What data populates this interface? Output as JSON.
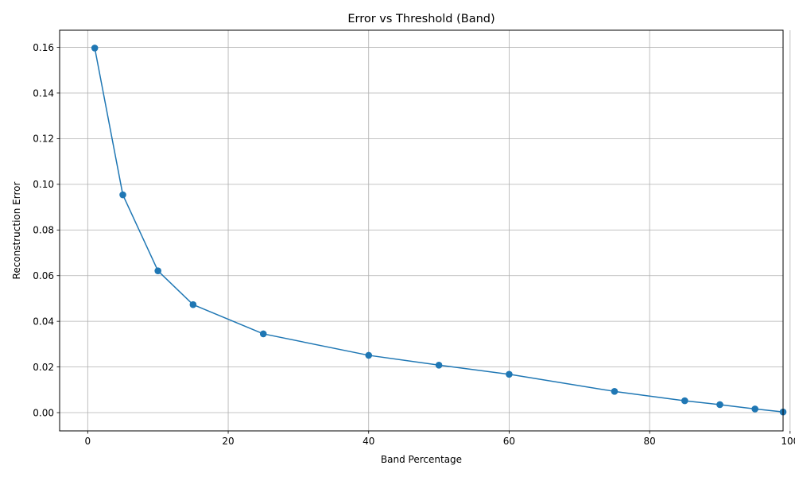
{
  "chart_data": {
    "type": "line",
    "title": "Error vs Threshold (Band)",
    "xlabel": "Band Percentage",
    "ylabel": "Reconstruction Error",
    "xlim": [
      -4,
      99
    ],
    "ylim": [
      -0.008,
      0.1675
    ],
    "xticks": [
      0,
      20,
      40,
      60,
      80,
      100
    ],
    "yticks": [
      0.0,
      0.02,
      0.04,
      0.06,
      0.08,
      0.1,
      0.12,
      0.14,
      0.16
    ],
    "xtick_labels": [
      "0",
      "20",
      "40",
      "60",
      "80",
      "100"
    ],
    "ytick_labels": [
      "0.00",
      "0.02",
      "0.04",
      "0.06",
      "0.08",
      "0.10",
      "0.12",
      "0.14",
      "0.16"
    ],
    "grid": true,
    "series": [
      {
        "color": "#1f77b4",
        "marker": "circle",
        "x": [
          1,
          5,
          10,
          15,
          25,
          40,
          50,
          60,
          75,
          85,
          90,
          95,
          99
        ],
        "y": [
          0.1597,
          0.0954,
          0.0621,
          0.0473,
          0.0345,
          0.0251,
          0.0208,
          0.0168,
          0.0093,
          0.0052,
          0.0035,
          0.0016,
          0.0003
        ]
      }
    ]
  }
}
